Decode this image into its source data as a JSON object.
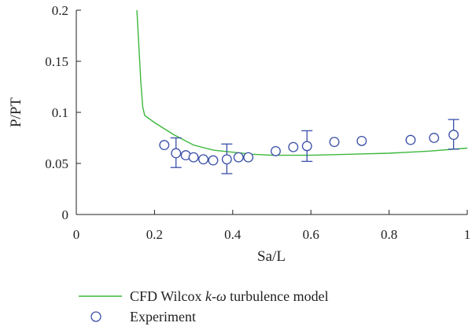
{
  "chart_data": {
    "type": "line",
    "xlabel": "Sa/L",
    "ylabel": "P/PT",
    "xlim": [
      0,
      1
    ],
    "ylim": [
      0,
      0.2
    ],
    "xticks": [
      0,
      0.2,
      0.4,
      0.6,
      0.8,
      1
    ],
    "xtick_labels": [
      "0",
      "0.2",
      "0.4",
      "0.6",
      "0.8",
      "1"
    ],
    "yticks": [
      0,
      0.05,
      0.1,
      0.15,
      0.2
    ],
    "ytick_labels": [
      "0",
      "0.05",
      "0.1",
      "0.15",
      "0.2"
    ],
    "grid": false,
    "legend_position": "bottom",
    "series": [
      {
        "name": "CFD Wilcox k-ω turbulence model",
        "kind": "line",
        "color": "#3cb83c",
        "x": [
          0.155,
          0.16,
          0.165,
          0.17,
          0.175,
          0.2,
          0.25,
          0.3,
          0.35,
          0.4,
          0.45,
          0.5,
          0.55,
          0.6,
          0.7,
          0.8,
          0.9,
          1.0
        ],
        "y": [
          0.2,
          0.165,
          0.13,
          0.105,
          0.097,
          0.09,
          0.078,
          0.068,
          0.063,
          0.061,
          0.059,
          0.058,
          0.058,
          0.058,
          0.059,
          0.06,
          0.062,
          0.065
        ]
      },
      {
        "name": "Experiment",
        "kind": "scatter",
        "color": "#3a4fa8",
        "x": [
          0.225,
          0.255,
          0.28,
          0.3,
          0.325,
          0.35,
          0.385,
          0.415,
          0.44,
          0.51,
          0.555,
          0.59,
          0.66,
          0.73,
          0.855,
          0.915,
          0.965
        ],
        "y": [
          0.068,
          0.06,
          0.058,
          0.056,
          0.054,
          0.053,
          0.054,
          0.056,
          0.056,
          0.062,
          0.066,
          0.067,
          0.071,
          0.072,
          0.073,
          0.075,
          0.078
        ],
        "error_bars": [
          {
            "x": 0.255,
            "y": 0.06,
            "low": 0.046,
            "high": 0.075
          },
          {
            "x": 0.385,
            "y": 0.054,
            "low": 0.04,
            "high": 0.069
          },
          {
            "x": 0.59,
            "y": 0.067,
            "low": 0.052,
            "high": 0.082
          },
          {
            "x": 0.965,
            "y": 0.078,
            "low": 0.064,
            "high": 0.093
          }
        ]
      }
    ],
    "legend": [
      {
        "label_pre": "CFD Wilcox ",
        "label_k": "k",
        "label_dash": "-",
        "label_omega": "ω",
        "label_post": " turbulence model",
        "symbol": "line",
        "color": "#3cb83c"
      },
      {
        "label": "Experiment",
        "symbol": "circle",
        "color": "#3a4fa8"
      }
    ]
  }
}
